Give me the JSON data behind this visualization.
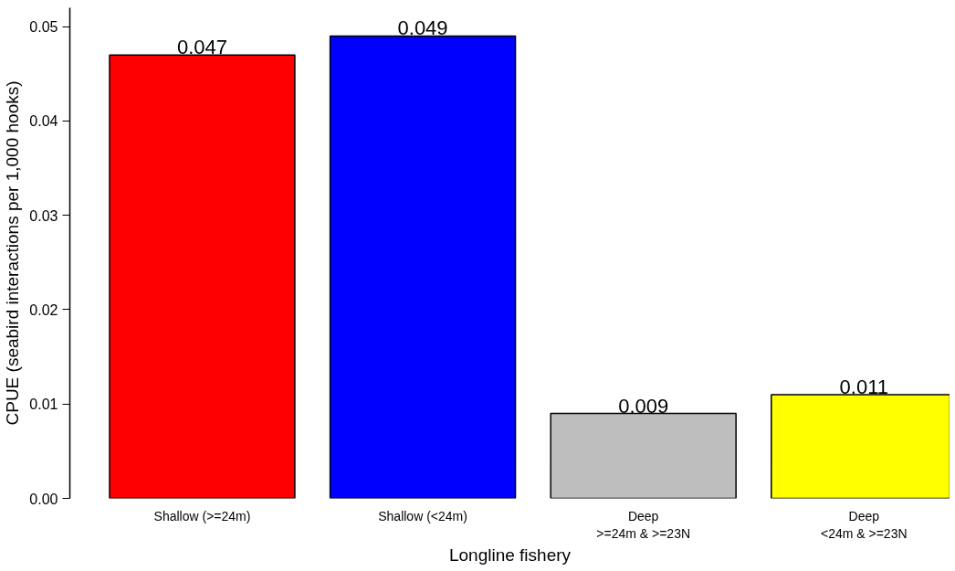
{
  "chart_data": {
    "type": "bar",
    "xlabel": "Longline fishery",
    "ylabel": "CPUE (seabird interactions per 1,000 hooks)",
    "categories": [
      "Shallow (>=24m)",
      "Shallow (<24m)",
      "Deep\n>=24m & >=23N",
      "Deep\n<24m & >=23N"
    ],
    "values": [
      0.047,
      0.049,
      0.009,
      0.011
    ],
    "colors": [
      "#ff0000",
      "#0000ff",
      "#bebebe",
      "#ffff00"
    ],
    "ylim": [
      0,
      0.052
    ],
    "yticks": [
      {
        "value": 0,
        "label": "0.00"
      },
      {
        "value": 0.01,
        "label": "0.01"
      },
      {
        "value": 0.02,
        "label": "0.02"
      },
      {
        "value": 0.03,
        "label": "0.03"
      },
      {
        "value": 0.04,
        "label": "0.04"
      },
      {
        "value": 0.05,
        "label": "0.05"
      }
    ],
    "data_labels": true,
    "grid": false
  }
}
